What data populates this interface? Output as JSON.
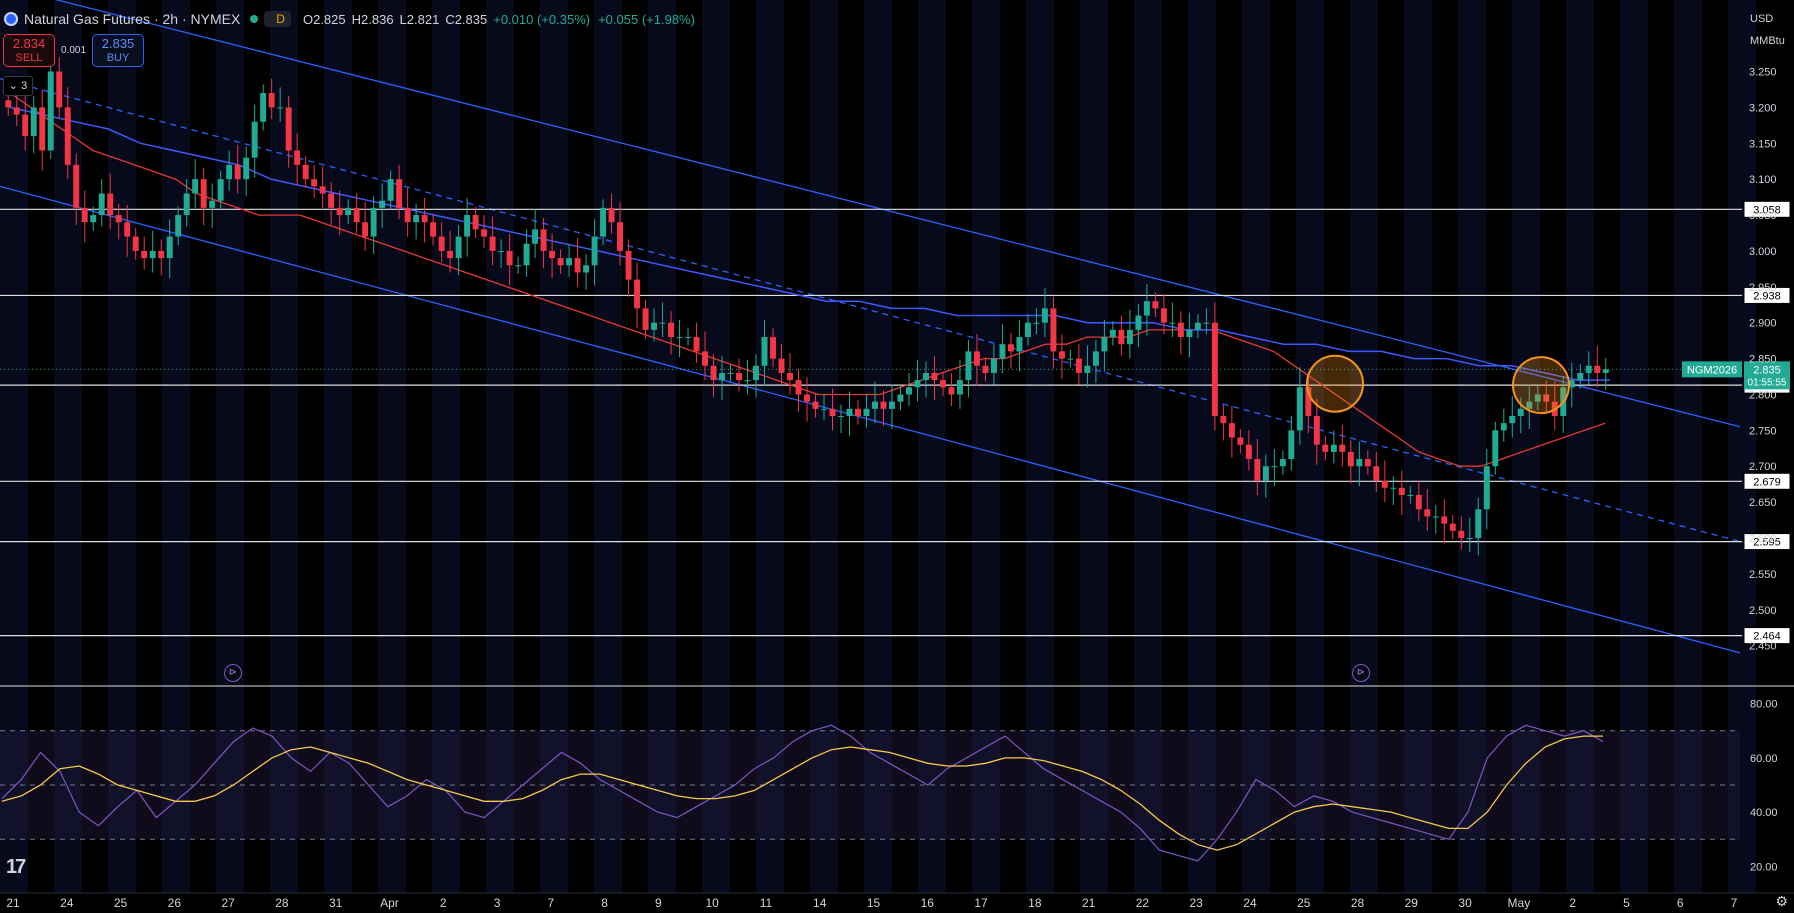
{
  "header": {
    "title": "Natural Gas Futures · 2h · NYMEX",
    "interval_badge": "D",
    "open": "O2.825",
    "high": "H2.836",
    "low": "L2.821",
    "close": "C2.835",
    "change1": "+0.010 (+0.35%)",
    "change2": "+0.055 (+1.98%)"
  },
  "trade": {
    "sell_price": "2.834",
    "sell_label": "SELL",
    "spread": "0.001",
    "buy_price": "2.835",
    "buy_label": "BUY"
  },
  "indicator_toggle": "3",
  "axis_units": [
    "USD",
    "MMBtu"
  ],
  "colors": {
    "bull": "#22ab94",
    "bear": "#f23645",
    "channel": "#2962ff",
    "ma_red": "#e53935",
    "ma_blue": "#3d5afe",
    "rsi": "#7e57c2",
    "rsi_ma": "#f7c948",
    "highlight": "#f7931a"
  },
  "chart_data": [
    {
      "type": "candlestick",
      "symbol": "NGM2026",
      "last_price": "2.835",
      "countdown": "01:55:55",
      "ylim": [
        2.43,
        3.28
      ],
      "y_ticks": [
        "3.250",
        "3.200",
        "3.150",
        "3.100",
        "3.050",
        "3.000",
        "2.950",
        "2.900",
        "2.850",
        "2.800",
        "2.750",
        "2.700",
        "2.650",
        "2.600",
        "2.550",
        "2.500",
        "2.450"
      ],
      "x_ticks": [
        "21",
        "24",
        "25",
        "26",
        "27",
        "28",
        "31",
        "Apr",
        "2",
        "3",
        "7",
        "8",
        "9",
        "10",
        "11",
        "14",
        "15",
        "16",
        "17",
        "18",
        "21",
        "22",
        "23",
        "24",
        "25",
        "28",
        "29",
        "30",
        "May",
        "2",
        "5",
        "6",
        "7"
      ],
      "horizontal_levels": [
        3.058,
        2.938,
        2.813,
        2.679,
        2.595,
        2.464
      ],
      "level_labels": [
        "3.058",
        "2.938",
        "2.813",
        "2.679",
        "2.595",
        "2.464"
      ],
      "closes": [
        3.2,
        3.19,
        3.16,
        3.2,
        3.14,
        3.25,
        3.2,
        3.12,
        3.06,
        3.04,
        3.05,
        3.08,
        3.05,
        3.04,
        3.02,
        3.0,
        2.99,
        3.0,
        2.99,
        3.02,
        3.05,
        3.08,
        3.1,
        3.06,
        3.07,
        3.1,
        3.12,
        3.1,
        3.13,
        3.18,
        3.22,
        3.2,
        3.2,
        3.14,
        3.12,
        3.1,
        3.09,
        3.08,
        3.06,
        3.05,
        3.06,
        3.04,
        3.02,
        3.06,
        3.07,
        3.1,
        3.06,
        3.04,
        3.05,
        3.04,
        3.02,
        3.0,
        2.99,
        3.02,
        3.05,
        3.03,
        3.02,
        3.0,
        3.0,
        2.98,
        2.98,
        3.01,
        3.03,
        3.0,
        2.99,
        2.98,
        2.99,
        2.97,
        2.98,
        3.02,
        3.06,
        3.04,
        3.0,
        2.96,
        2.92,
        2.89,
        2.9,
        2.9,
        2.88,
        2.88,
        2.88,
        2.86,
        2.84,
        2.82,
        2.83,
        2.83,
        2.82,
        2.82,
        2.84,
        2.88,
        2.85,
        2.83,
        2.82,
        2.8,
        2.79,
        2.78,
        2.78,
        2.77,
        2.77,
        2.78,
        2.77,
        2.78,
        2.79,
        2.78,
        2.79,
        2.8,
        2.81,
        2.82,
        2.83,
        2.82,
        2.81,
        2.8,
        2.82,
        2.86,
        2.84,
        2.83,
        2.85,
        2.87,
        2.86,
        2.88,
        2.9,
        2.9,
        2.92,
        2.86,
        2.85,
        2.85,
        2.83,
        2.84,
        2.86,
        2.88,
        2.89,
        2.87,
        2.89,
        2.91,
        2.93,
        2.92,
        2.9,
        2.9,
        2.88,
        2.89,
        2.9,
        2.9,
        2.77,
        2.76,
        2.74,
        2.73,
        2.71,
        2.68,
        2.7,
        2.7,
        2.71,
        2.75,
        2.81,
        2.77,
        2.73,
        2.72,
        2.73,
        2.72,
        2.7,
        2.71,
        2.7,
        2.68,
        2.67,
        2.67,
        2.66,
        2.66,
        2.64,
        2.63,
        2.63,
        2.62,
        2.61,
        2.6,
        2.6,
        2.64,
        2.7,
        2.75,
        2.76,
        2.77,
        2.78,
        2.79,
        2.8,
        2.79,
        2.77,
        2.81,
        2.82,
        2.83,
        2.84,
        2.83,
        2.835
      ],
      "ma_red": [
        3.22,
        3.2,
        3.18,
        3.16,
        3.14,
        3.13,
        3.12,
        3.11,
        3.1,
        3.08,
        3.07,
        3.06,
        3.05,
        3.05,
        3.05,
        3.04,
        3.03,
        3.02,
        3.01,
        3.0,
        2.99,
        2.98,
        2.97,
        2.96,
        2.95,
        2.94,
        2.93,
        2.92,
        2.91,
        2.9,
        2.89,
        2.88,
        2.87,
        2.86,
        2.85,
        2.84,
        2.83,
        2.82,
        2.81,
        2.8,
        2.8,
        2.8,
        2.8,
        2.81,
        2.82,
        2.83,
        2.84,
        2.85,
        2.85,
        2.86,
        2.87,
        2.87,
        2.88,
        2.88,
        2.88,
        2.89,
        2.89,
        2.89,
        2.89,
        2.88,
        2.87,
        2.86,
        2.84,
        2.82,
        2.8,
        2.78,
        2.76,
        2.74,
        2.72,
        2.71,
        2.7,
        2.7,
        2.71,
        2.72,
        2.73,
        2.74,
        2.75,
        2.76
      ],
      "ma_blue": [
        3.2,
        3.19,
        3.18,
        3.17,
        3.15,
        3.14,
        3.13,
        3.12,
        3.1,
        3.09,
        3.08,
        3.07,
        3.06,
        3.05,
        3.04,
        3.03,
        3.02,
        3.01,
        3.0,
        2.99,
        2.98,
        2.97,
        2.96,
        2.95,
        2.94,
        2.93,
        2.93,
        2.92,
        2.92,
        2.91,
        2.91,
        2.91,
        2.91,
        2.9,
        2.9,
        2.9,
        2.89,
        2.89,
        2.88,
        2.87,
        2.87,
        2.86,
        2.86,
        2.85,
        2.85,
        2.84,
        2.84,
        2.83,
        2.82,
        2.82
      ]
    },
    {
      "type": "line",
      "name": "RSI",
      "ylim": [
        15,
        85
      ],
      "y_ticks": [
        "80.00",
        "60.00",
        "40.00",
        "20.00"
      ],
      "band_levels": [
        70,
        50,
        30
      ],
      "rsi": [
        45,
        52,
        62,
        55,
        40,
        35,
        42,
        48,
        38,
        44,
        50,
        58,
        66,
        71,
        68,
        60,
        55,
        62,
        58,
        50,
        42,
        46,
        52,
        48,
        40,
        38,
        44,
        50,
        56,
        62,
        58,
        52,
        48,
        44,
        40,
        38,
        42,
        46,
        50,
        56,
        60,
        66,
        70,
        72,
        68,
        62,
        58,
        54,
        50,
        56,
        60,
        64,
        68,
        62,
        56,
        52,
        48,
        44,
        40,
        34,
        26,
        24,
        22,
        30,
        40,
        52,
        48,
        42,
        46,
        44,
        40,
        38,
        36,
        34,
        32,
        30,
        40,
        60,
        68,
        72,
        70,
        68,
        70,
        66
      ],
      "rsi_ma": [
        44,
        46,
        50,
        56,
        57,
        54,
        50,
        48,
        46,
        44,
        44,
        46,
        50,
        55,
        60,
        63,
        64,
        62,
        60,
        58,
        55,
        52,
        50,
        48,
        46,
        44,
        44,
        45,
        48,
        52,
        54,
        54,
        52,
        50,
        48,
        46,
        45,
        45,
        46,
        48,
        52,
        56,
        60,
        63,
        64,
        63,
        62,
        60,
        58,
        57,
        57,
        58,
        60,
        60,
        59,
        57,
        55,
        52,
        48,
        43,
        37,
        32,
        28,
        26,
        28,
        32,
        36,
        40,
        42,
        43,
        42,
        41,
        40,
        38,
        36,
        34,
        34,
        40,
        50,
        58,
        64,
        67,
        68,
        68
      ]
    }
  ]
}
